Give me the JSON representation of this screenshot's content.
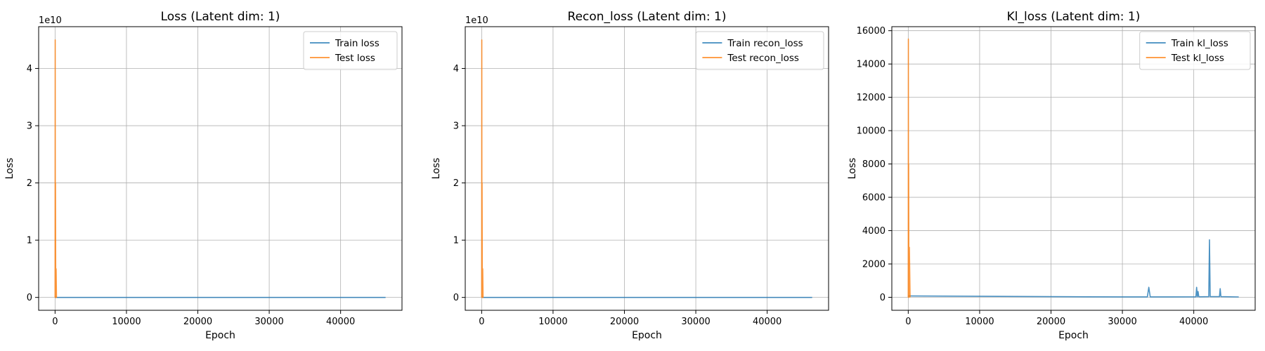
{
  "chart_data": [
    {
      "type": "line",
      "title": "Loss (Latent dim: 1)",
      "xlabel": "Epoch",
      "ylabel": "Loss",
      "xlim": [
        -2300,
        48600
      ],
      "ylim": [
        -2250000000.0,
        47300000000.0
      ],
      "xticks": [
        0,
        10000,
        20000,
        30000,
        40000
      ],
      "yticks": [
        0,
        10000000000.0,
        20000000000.0,
        30000000000.0,
        40000000000.0
      ],
      "ytick_labels": [
        "0",
        "1",
        "2",
        "3",
        "4"
      ],
      "y_offset_text": "1e10",
      "grid": true,
      "legend_loc": "upper right",
      "series": [
        {
          "name": "Train loss",
          "color": "#1f77b4",
          "x": [
            0,
            46300
          ],
          "y": [
            60000,
            40000
          ]
        },
        {
          "name": "Test loss",
          "color": "#ff7f0e",
          "x": [
            0,
            20,
            40,
            60,
            100,
            150,
            200,
            260
          ],
          "y": [
            0,
            45000000000.0,
            0,
            20000000000.0,
            0,
            5000000000.0,
            0,
            0
          ]
        }
      ]
    },
    {
      "type": "line",
      "title": "Recon_loss (Latent dim: 1)",
      "xlabel": "Epoch",
      "ylabel": "Loss",
      "xlim": [
        -2300,
        48600
      ],
      "ylim": [
        -2250000000.0,
        47300000000.0
      ],
      "xticks": [
        0,
        10000,
        20000,
        30000,
        40000
      ],
      "yticks": [
        0,
        10000000000.0,
        20000000000.0,
        30000000000.0,
        40000000000.0
      ],
      "ytick_labels": [
        "0",
        "1",
        "2",
        "3",
        "4"
      ],
      "y_offset_text": "1e10",
      "grid": true,
      "legend_loc": "upper right",
      "series": [
        {
          "name": "Train recon_loss",
          "color": "#1f77b4",
          "x": [
            0,
            46300
          ],
          "y": [
            60000,
            40000
          ]
        },
        {
          "name": "Test recon_loss",
          "color": "#ff7f0e",
          "x": [
            0,
            20,
            40,
            60,
            100,
            150,
            200,
            260
          ],
          "y": [
            0,
            45000000000.0,
            0,
            20000000000.0,
            0,
            5000000000.0,
            0,
            0
          ]
        }
      ]
    },
    {
      "type": "line",
      "title": "Kl_loss (Latent dim: 1)",
      "xlabel": "Epoch",
      "ylabel": "Loss",
      "xlim": [
        -2300,
        48600
      ],
      "ylim": [
        -780,
        16240
      ],
      "xticks": [
        0,
        10000,
        20000,
        30000,
        40000
      ],
      "yticks": [
        0,
        2000,
        4000,
        6000,
        8000,
        10000,
        12000,
        14000,
        16000
      ],
      "ytick_labels": [
        "0",
        "2000",
        "4000",
        "6000",
        "8000",
        "10000",
        "12000",
        "14000",
        "16000"
      ],
      "y_offset_text": "",
      "grid": true,
      "legend_loc": "upper right",
      "series": [
        {
          "name": "Train kl_loss",
          "color": "#1f77b4",
          "x": [
            0,
            5000,
            10000,
            15000,
            20000,
            25000,
            30000,
            33500,
            33700,
            33900,
            37000,
            40300,
            40400,
            40500,
            40600,
            40700,
            40800,
            42100,
            42200,
            42300,
            43600,
            43700,
            43800,
            46300
          ],
          "y": [
            80,
            70,
            60,
            50,
            40,
            30,
            25,
            25,
            600,
            25,
            25,
            30,
            600,
            30,
            350,
            40,
            30,
            40,
            3450,
            40,
            40,
            520,
            40,
            20
          ]
        },
        {
          "name": "Test kl_loss",
          "color": "#ff7f0e",
          "x": [
            0,
            20,
            40,
            60,
            100,
            160,
            260
          ],
          "y": [
            0,
            15500,
            0,
            8000,
            0,
            3000,
            0
          ]
        }
      ]
    }
  ]
}
